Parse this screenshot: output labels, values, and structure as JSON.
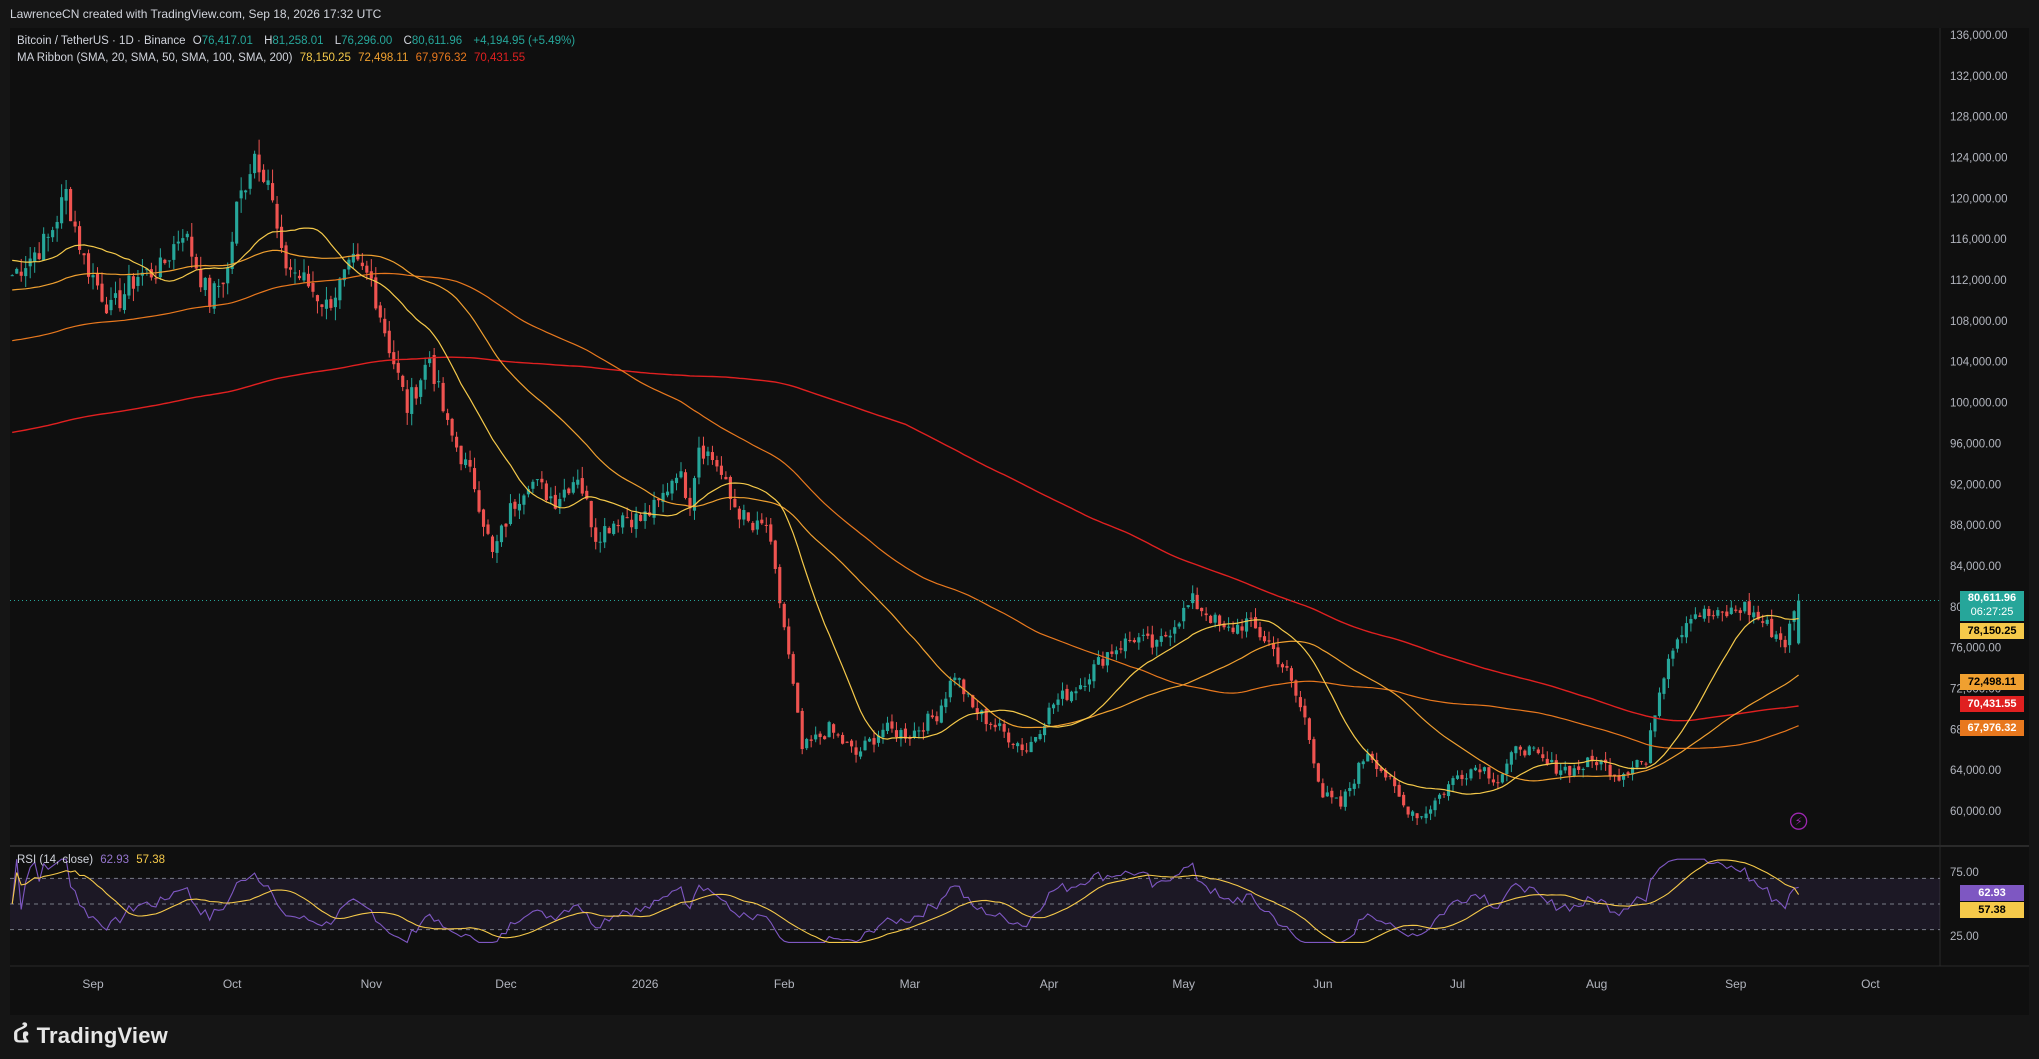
{
  "header": {
    "attribution": "LawrenceCN created with TradingView.com, Sep 18, 2026 17:32 UTC"
  },
  "legend": {
    "symbol": "Bitcoin / TetherUS · 1D · Binance",
    "o_label": "O",
    "o_value": "76,417.01",
    "h_label": "H",
    "h_value": "81,258.01",
    "l_label": "L",
    "l_value": "76,296.00",
    "c_label": "C",
    "c_value": "80,611.96",
    "change": "+4,194.95 (+5.49%)",
    "ma_title": "MA Ribbon (SMA, 20, SMA, 50, SMA, 100, SMA, 200)",
    "ma20": "78,150.25",
    "ma50": "72,498.11",
    "ma100": "67,976.32",
    "ma200": "70,431.55",
    "rsi_title": "RSI (14, close)",
    "rsi_value": "62.93",
    "rsi_ma": "57.38"
  },
  "price_tags": {
    "last": "80,611.96",
    "countdown": "06:27:25",
    "ma20": "78,150.25",
    "ma50": "72,498.11",
    "ma200": "70,431.55",
    "ma100": "67,976.32",
    "rsi": "62.93",
    "rsi_ma": "57.38"
  },
  "colors": {
    "up": "#26a69a",
    "down": "#ef5350",
    "ma20": "#f5c94a",
    "ma50": "#f0a030",
    "ma100": "#e8781e",
    "ma200": "#e02020",
    "rsi": "#7e57c2",
    "rsi_ma": "#f5c94a"
  },
  "branding": {
    "logo_text": "TradingView",
    "logo_icon": "tradingview-logo-icon"
  },
  "chart_data": {
    "type": "candlestick",
    "symbol": "BTCUSDT",
    "timeframe": "1D",
    "y_ticks": [
      60000,
      64000,
      68000,
      72000,
      76000,
      80000,
      84000,
      88000,
      92000,
      96000,
      100000,
      104000,
      108000,
      112000,
      116000,
      120000,
      124000,
      128000,
      132000,
      136000
    ],
    "y_tick_labels": [
      "60,000.00",
      "64,000.00",
      "68,000.00",
      "72,000.00",
      "76,000.00",
      "80,000.00",
      "84,000.00",
      "88,000.00",
      "92,000.00",
      "96,000.00",
      "100,000.00",
      "104,000.00",
      "108,000.00",
      "112,000.00",
      "116,000.00",
      "120,000.00",
      "124,000.00",
      "128,000.00",
      "132,000.00",
      "136,000.00"
    ],
    "ylim": [
      57000,
      137000
    ],
    "x_labels": [
      "Sep",
      "Oct",
      "Nov",
      "Dec",
      "2026",
      "Feb",
      "Mar",
      "Apr",
      "May",
      "Jun",
      "Jul",
      "Aug",
      "Sep",
      "Oct"
    ],
    "x_label_index": [
      18,
      49,
      80,
      110,
      141,
      172,
      200,
      231,
      261,
      292,
      322,
      353,
      384,
      414
    ],
    "close_anchors": [
      [
        0,
        112500
      ],
      [
        8,
        116000
      ],
      [
        12,
        120500
      ],
      [
        16,
        114000
      ],
      [
        22,
        109000
      ],
      [
        28,
        112500
      ],
      [
        33,
        113000
      ],
      [
        38,
        117000
      ],
      [
        44,
        110000
      ],
      [
        48,
        113000
      ],
      [
        50,
        119000
      ],
      [
        54,
        124500
      ],
      [
        57,
        122000
      ],
      [
        60,
        114000
      ],
      [
        66,
        111500
      ],
      [
        70,
        109500
      ],
      [
        76,
        113500
      ],
      [
        80,
        112000
      ],
      [
        84,
        105500
      ],
      [
        88,
        99500
      ],
      [
        93,
        104500
      ],
      [
        97,
        97500
      ],
      [
        103,
        92000
      ],
      [
        107,
        85000
      ],
      [
        111,
        89500
      ],
      [
        115,
        92500
      ],
      [
        121,
        90500
      ],
      [
        126,
        93000
      ],
      [
        130,
        87000
      ],
      [
        136,
        89000
      ],
      [
        140,
        88500
      ],
      [
        144,
        90000
      ],
      [
        148,
        93500
      ],
      [
        151,
        90500
      ],
      [
        153,
        96000
      ],
      [
        157,
        94000
      ],
      [
        160,
        90500
      ],
      [
        165,
        87500
      ],
      [
        168,
        88000
      ],
      [
        172,
        78000
      ],
      [
        176,
        66000
      ],
      [
        182,
        68000
      ],
      [
        188,
        65500
      ],
      [
        194,
        68000
      ],
      [
        200,
        67500
      ],
      [
        206,
        69500
      ],
      [
        210,
        73500
      ],
      [
        214,
        70000
      ],
      [
        220,
        68000
      ],
      [
        226,
        66000
      ],
      [
        232,
        70500
      ],
      [
        238,
        72500
      ],
      [
        244,
        75500
      ],
      [
        250,
        77000
      ],
      [
        255,
        76000
      ],
      [
        259,
        78500
      ],
      [
        263,
        80500
      ],
      [
        266,
        79500
      ],
      [
        270,
        77500
      ],
      [
        275,
        78500
      ],
      [
        280,
        76500
      ],
      [
        284,
        73500
      ],
      [
        288,
        69000
      ],
      [
        292,
        61500
      ],
      [
        296,
        60500
      ],
      [
        302,
        66000
      ],
      [
        306,
        63500
      ],
      [
        310,
        60500
      ],
      [
        314,
        59500
      ],
      [
        318,
        61500
      ],
      [
        322,
        63500
      ],
      [
        327,
        64500
      ],
      [
        331,
        63000
      ],
      [
        336,
        66500
      ],
      [
        342,
        64500
      ],
      [
        348,
        64000
      ],
      [
        353,
        65000
      ],
      [
        358,
        63500
      ],
      [
        362,
        65000
      ],
      [
        364,
        64500
      ],
      [
        366,
        70000
      ],
      [
        369,
        75500
      ],
      [
        374,
        79500
      ],
      [
        380,
        79000
      ],
      [
        386,
        80000
      ],
      [
        390,
        78500
      ],
      [
        395,
        76500
      ],
      [
        398,
        80600
      ]
    ],
    "last_values": {
      "close": 80611.96,
      "ma20": 78150.25,
      "ma50": 72498.11,
      "ma100": 67976.32,
      "ma200": 70431.55
    },
    "rsi": {
      "ylim": [
        0,
        100
      ],
      "y_ticks": [
        25,
        75
      ],
      "y_tick_labels": [
        "25.00",
        "75.00"
      ],
      "band_upper": 70,
      "band_mid": 50,
      "band_lower": 30,
      "last": 62.93,
      "last_ma": 57.38
    }
  }
}
